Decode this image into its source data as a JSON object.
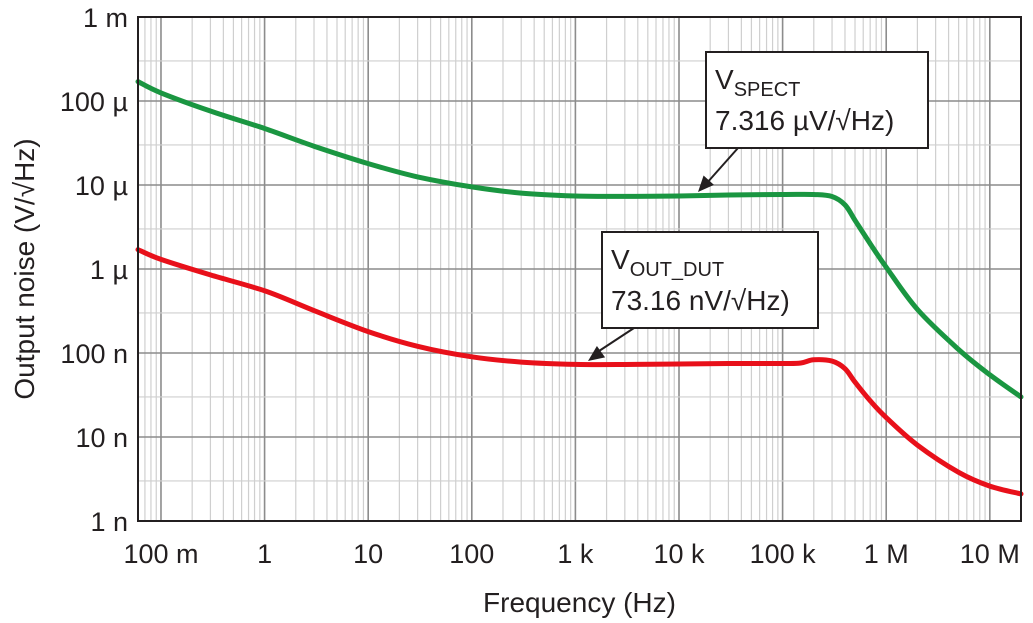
{
  "chart_data": {
    "type": "line",
    "xlabel": "Frequency (Hz)",
    "ylabel": "Output noise (V/√Hz)",
    "xscale": "log",
    "yscale": "log",
    "xlim": [
      0.06,
      20000000
    ],
    "ylim": [
      1e-09,
      0.001
    ],
    "grid": true,
    "x_ticks": [
      {
        "value": 0.1,
        "label": "100 m"
      },
      {
        "value": 1,
        "label": "1"
      },
      {
        "value": 10,
        "label": "10"
      },
      {
        "value": 100,
        "label": "100"
      },
      {
        "value": 1000,
        "label": "1 k"
      },
      {
        "value": 10000,
        "label": "10 k"
      },
      {
        "value": 100000,
        "label": "100 k"
      },
      {
        "value": 1000000,
        "label": "1 M"
      },
      {
        "value": 10000000,
        "label": "10 M"
      }
    ],
    "y_ticks": [
      {
        "value": 1e-09,
        "label": "1 n"
      },
      {
        "value": 1e-08,
        "label": "10 n"
      },
      {
        "value": 1e-07,
        "label": "100 n"
      },
      {
        "value": 1e-06,
        "label": "1 µ"
      },
      {
        "value": 1e-05,
        "label": "10 µ"
      },
      {
        "value": 0.0001,
        "label": "100 µ"
      },
      {
        "value": 0.001,
        "label": "1 m"
      }
    ],
    "series": [
      {
        "color": "#1a9641",
        "x": [
          0.06,
          0.1,
          0.3,
          1,
          3,
          10,
          30,
          100,
          300,
          1000,
          3000,
          10000,
          30000,
          100000,
          200000,
          300000,
          400000,
          500000,
          700000,
          1000000,
          2000000,
          5000000,
          10000000,
          20000000
        ],
        "y": [
          0.00017,
          0.000125,
          7.6e-05,
          4.7e-05,
          2.9e-05,
          1.8e-05,
          1.25e-05,
          9.5e-06,
          8e-06,
          7.4e-06,
          7.316e-06,
          7.4e-06,
          7.6e-06,
          7.7e-06,
          7.7e-06,
          7.3e-06,
          5.8e-06,
          3.8e-06,
          2e-06,
          1.05e-06,
          3.3e-07,
          1.1e-07,
          5.5e-08,
          3e-08
        ]
      },
      {
        "color": "#e8101a",
        "x": [
          0.06,
          0.1,
          0.3,
          1,
          3,
          10,
          30,
          100,
          300,
          1000,
          3000,
          10000,
          30000,
          100000,
          150000,
          200000,
          300000,
          400000,
          500000,
          700000,
          1000000,
          2000000,
          5000000,
          10000000,
          20000000
        ],
        "y": [
          1.7e-06,
          1.3e-06,
          8.5e-07,
          5.5e-07,
          3.2e-07,
          1.8e-07,
          1.2e-07,
          9e-08,
          7.8e-08,
          7.316e-08,
          7.3e-08,
          7.4e-08,
          7.5e-08,
          7.5e-08,
          7.6e-08,
          8.3e-08,
          8e-08,
          6.5e-08,
          4.5e-08,
          2.7e-08,
          1.7e-08,
          8e-09,
          3.8e-09,
          2.6e-09,
          2.1e-09
        ]
      }
    ],
    "annotations": [
      {
        "name": "V",
        "sub": "SPECT",
        "value": "7.316 µV/√Hz)",
        "point_x": 4000,
        "point_y": 7.316e-06
      },
      {
        "name": "V",
        "sub": "OUT_DUT",
        "value": "73.16 nV/√Hz)",
        "point_x": 1000,
        "point_y": 7.316e-08
      }
    ]
  }
}
